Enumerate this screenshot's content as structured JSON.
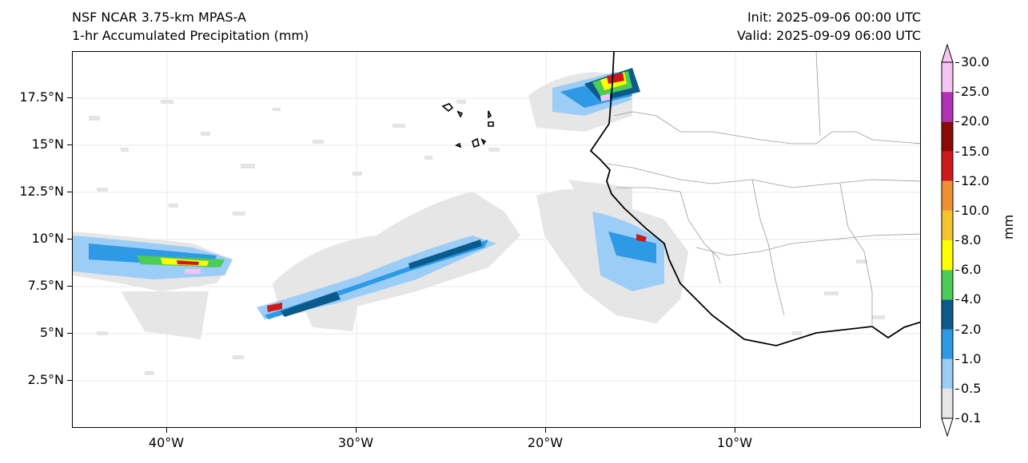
{
  "header": {
    "model": "NSF NCAR 3.75-km MPAS-A",
    "product": "1-hr Accumulated Precipitation (mm)",
    "init": "Init: 2025-09-06 00:00 UTC",
    "valid": "Valid: 2025-09-09 06:00 UTC"
  },
  "axes": {
    "lat_ticks": [
      "17.5°N",
      "15°N",
      "12.5°N",
      "10°N",
      "7.5°N",
      "5°N",
      "2.5°N"
    ],
    "lon_ticks": [
      "40°W",
      "30°W",
      "20°W",
      "10°W"
    ]
  },
  "colorbar": {
    "units": "mm",
    "levels": [
      "0.1",
      "0.5",
      "1.0",
      "2.0",
      "4.0",
      "6.0",
      "8.0",
      "10.0",
      "12.0",
      "15.0",
      "20.0",
      "25.0",
      "30.0"
    ],
    "colors": [
      "#e6e6e6",
      "#9ccdf7",
      "#2e9ae6",
      "#0a5a8c",
      "#4ccd55",
      "#ffff00",
      "#f5c230",
      "#ef9035",
      "#cc1a1a",
      "#8a0a0a",
      "#b030b8",
      "#f5c4f0"
    ]
  }
}
